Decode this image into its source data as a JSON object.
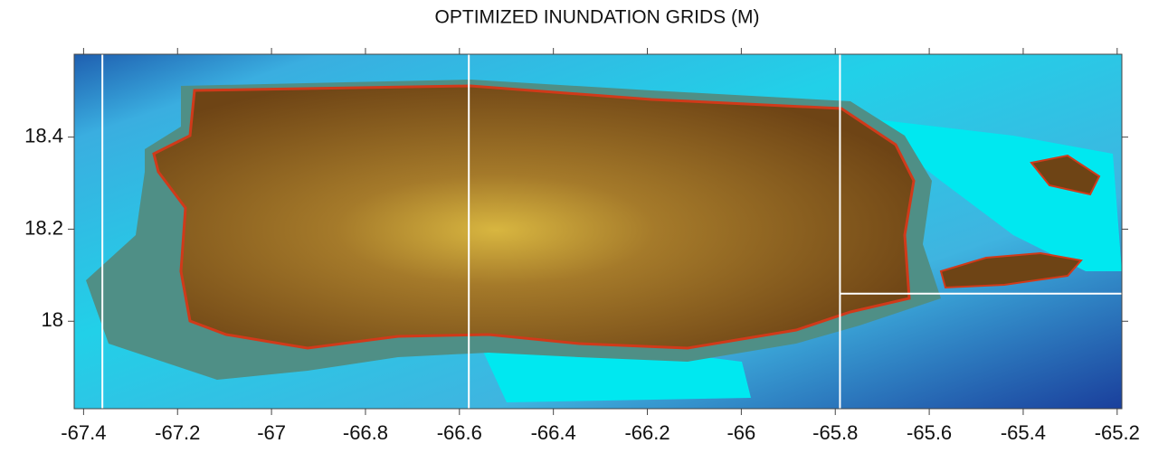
{
  "chart_data": {
    "type": "map",
    "title": "OPTIMIZED INUNDATION GRIDS (M)",
    "xlim": [
      -67.42,
      -65.19
    ],
    "ylim": [
      17.81,
      18.58
    ],
    "xticks": [
      -67.4,
      -67.2,
      -67,
      -66.8,
      -66.6,
      -66.4,
      -66.2,
      -66,
      -65.8,
      -65.6,
      -65.4,
      -65.2
    ],
    "yticks": [
      18,
      18.2,
      18.4
    ],
    "boundaries": {
      "lon": [
        -67.36,
        -66.58,
        -65.79
      ],
      "lat": [
        18.06
      ]
    }
  }
}
